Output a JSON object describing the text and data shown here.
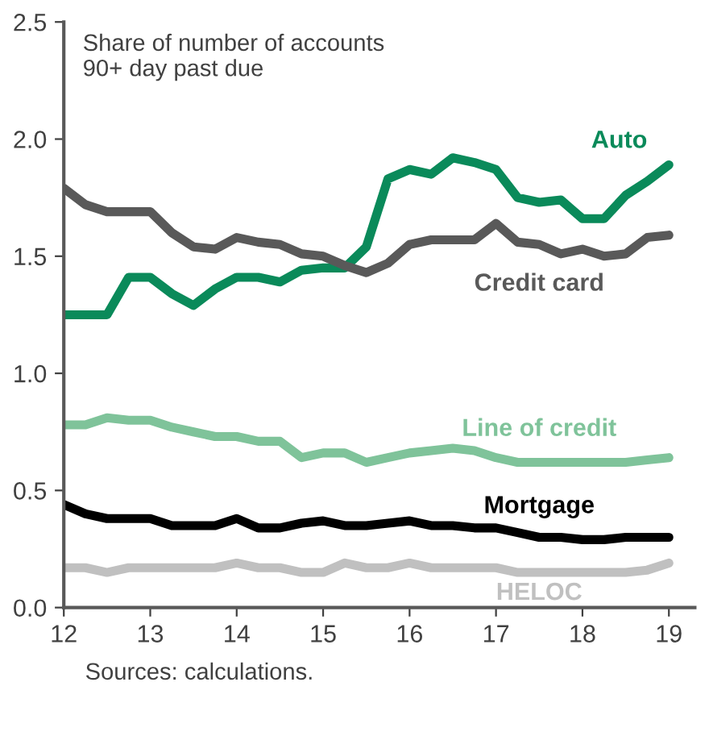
{
  "chart_data": {
    "type": "line",
    "title": "Share of number of accounts\n90+ day past due",
    "annotations": [
      "Sources: calculations."
    ],
    "x": [
      12,
      12.25,
      12.5,
      12.75,
      13,
      13.25,
      13.5,
      13.75,
      14,
      14.25,
      14.5,
      14.75,
      15,
      15.25,
      15.5,
      15.75,
      16,
      16.25,
      16.5,
      16.75,
      17,
      17.25,
      17.5,
      17.75,
      18,
      18.25,
      18.5,
      18.75,
      19
    ],
    "series": [
      {
        "name": "Auto",
        "color": "#0a8a5a",
        "values": [
          1.25,
          1.25,
          1.25,
          1.41,
          1.41,
          1.34,
          1.29,
          1.36,
          1.41,
          1.41,
          1.39,
          1.44,
          1.45,
          1.45,
          1.54,
          1.83,
          1.87,
          1.85,
          1.92,
          1.9,
          1.87,
          1.75,
          1.73,
          1.74,
          1.66,
          1.66,
          1.76,
          1.82,
          1.89
        ]
      },
      {
        "name": "Credit card",
        "color": "#595959",
        "values": [
          1.79,
          1.72,
          1.69,
          1.69,
          1.69,
          1.6,
          1.54,
          1.53,
          1.58,
          1.56,
          1.55,
          1.51,
          1.5,
          1.46,
          1.43,
          1.47,
          1.55,
          1.57,
          1.57,
          1.57,
          1.64,
          1.56,
          1.55,
          1.51,
          1.53,
          1.5,
          1.51,
          1.58,
          1.59
        ]
      },
      {
        "name": "Line of credit",
        "color": "#7fc39a",
        "values": [
          0.78,
          0.78,
          0.81,
          0.8,
          0.8,
          0.77,
          0.75,
          0.73,
          0.73,
          0.71,
          0.71,
          0.64,
          0.66,
          0.66,
          0.62,
          0.64,
          0.66,
          0.67,
          0.68,
          0.67,
          0.64,
          0.62,
          0.62,
          0.62,
          0.62,
          0.62,
          0.62,
          0.63,
          0.64
        ]
      },
      {
        "name": "Mortgage",
        "color": "#000000",
        "values": [
          0.44,
          0.4,
          0.38,
          0.38,
          0.38,
          0.35,
          0.35,
          0.35,
          0.38,
          0.34,
          0.34,
          0.36,
          0.37,
          0.35,
          0.35,
          0.36,
          0.37,
          0.35,
          0.35,
          0.34,
          0.34,
          0.32,
          0.3,
          0.3,
          0.29,
          0.29,
          0.3,
          0.3,
          0.3
        ]
      },
      {
        "name": "HELOC",
        "color": "#c0c0c0",
        "values": [
          0.17,
          0.17,
          0.15,
          0.17,
          0.17,
          0.17,
          0.17,
          0.17,
          0.19,
          0.17,
          0.17,
          0.15,
          0.15,
          0.19,
          0.17,
          0.17,
          0.19,
          0.17,
          0.17,
          0.17,
          0.17,
          0.15,
          0.15,
          0.15,
          0.15,
          0.15,
          0.15,
          0.16,
          0.19
        ]
      }
    ],
    "xlim": [
      12,
      19.3
    ],
    "xticks": [
      12,
      13,
      14,
      15,
      16,
      17,
      18,
      19
    ],
    "ylim": [
      0,
      2.5
    ],
    "yticks": [
      {
        "value": 0,
        "label": "0.0"
      },
      {
        "value": 0.5,
        "label": "0.5"
      },
      {
        "value": 1,
        "label": "1.0"
      },
      {
        "value": 1.5,
        "label": "1.5"
      },
      {
        "value": 2,
        "label": "2.0"
      },
      {
        "value": 2.5,
        "label": "2.5"
      }
    ],
    "grid": false,
    "legend": false,
    "line_style": "solid",
    "marker": "none"
  }
}
